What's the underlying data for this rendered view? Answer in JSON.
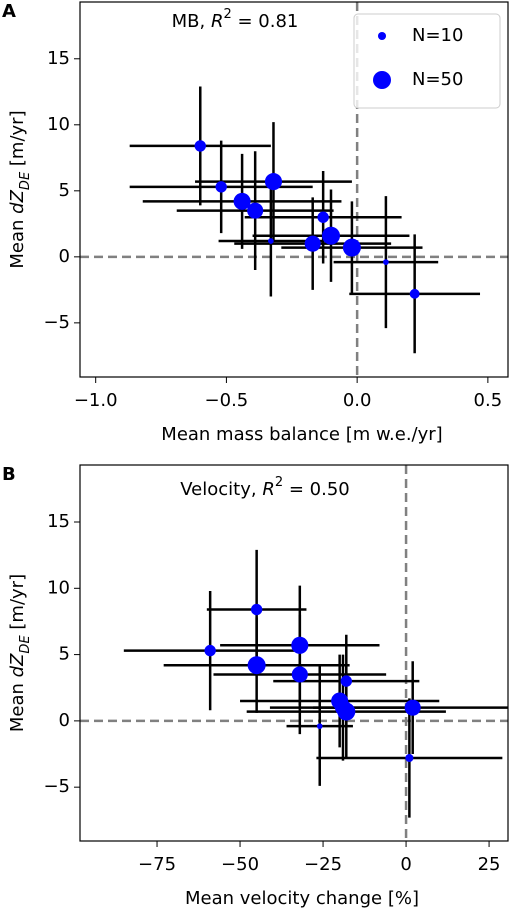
{
  "chart_data": [
    {
      "type": "scatter",
      "panel": "A",
      "title": [
        "MB, ",
        "R",
        "2",
        " = 0.81"
      ],
      "xlabel": "Mean mass balance [m w.e./yr]",
      "ylabel": [
        "Mean ",
        "dZ",
        "DE",
        " [m/yr]"
      ],
      "color": "#0000ff",
      "x": [
        -0.6,
        -0.52,
        -0.32,
        -0.44,
        -0.39,
        -0.33,
        -0.13,
        -0.17,
        -0.1,
        -0.02,
        0.11,
        0.22
      ],
      "y": [
        8.4,
        5.3,
        5.7,
        4.2,
        3.5,
        1.2,
        3.0,
        1.0,
        1.6,
        0.7,
        -0.4,
        -2.8
      ],
      "xerr": [
        0.27,
        0.35,
        0.3,
        0.38,
        0.3,
        0.2,
        0.3,
        0.3,
        0.3,
        0.27,
        0.2,
        0.25
      ],
      "yerr": [
        4.5,
        3.5,
        4.5,
        3.6,
        4.5,
        4.2,
        3.5,
        3.5,
        3.5,
        3.5,
        5,
        4.5
      ],
      "sizes": [
        20,
        20,
        45,
        45,
        40,
        5,
        20,
        40,
        50,
        50,
        5,
        15
      ],
      "xlim": [
        -1.06,
        0.577
      ],
      "ylim": [
        -9.1,
        19.3
      ],
      "xticks": [
        {
          "value": -1.0,
          "label": "−1.0"
        },
        {
          "value": -0.5,
          "label": "−0.5"
        },
        {
          "value": 0.0,
          "label": "0.0"
        },
        0.5
      ],
      "yticks": [
        {
          "value": -5,
          "label": "−5"
        },
        0,
        5,
        10,
        15
      ],
      "vlines": [
        0
      ],
      "hlines": [
        0
      ],
      "legend": {
        "loc": "upper right",
        "entries": [
          {
            "label": "N=10",
            "size": 10
          },
          {
            "label": "N=50",
            "size": 50
          }
        ]
      }
    },
    {
      "type": "scatter",
      "panel": "B",
      "title": [
        "Velocity, ",
        "R",
        "2",
        " = 0.50"
      ],
      "xlabel": "Mean velocity change [%]",
      "ylabel": [
        "Mean ",
        "dZ",
        "DE",
        " [m/yr]"
      ],
      "color": "#0000ff",
      "x": [
        -45,
        -59,
        -32,
        -45,
        -32,
        -26,
        -18,
        -20,
        -18,
        2,
        1,
        -19
      ],
      "y": [
        8.4,
        5.3,
        5.7,
        4.2,
        3.5,
        -0.4,
        3.0,
        1.5,
        0.7,
        1.0,
        -2.8,
        1.0
      ],
      "xerr": [
        15,
        26,
        24,
        28,
        26,
        10,
        22,
        30,
        30,
        30,
        28,
        22
      ],
      "yerr": [
        4.5,
        4.5,
        4.5,
        3.6,
        4.5,
        4.5,
        3.5,
        3.5,
        3.5,
        3.5,
        4.5,
        4.0
      ],
      "sizes": [
        20,
        20,
        45,
        50,
        40,
        5,
        20,
        45,
        50,
        40,
        10,
        40
      ],
      "xlim": [
        -98.2,
        30.7
      ],
      "ylim": [
        -9.06,
        19.3
      ],
      "xticks": [
        {
          "value": -75,
          "label": "−75"
        },
        {
          "value": -50,
          "label": "−50"
        },
        {
          "value": -25,
          "label": "−25"
        },
        0,
        25
      ],
      "yticks": [
        {
          "value": -5,
          "label": "−5"
        },
        0,
        5,
        10,
        15
      ],
      "vlines": [
        0
      ],
      "hlines": [
        0
      ]
    }
  ]
}
